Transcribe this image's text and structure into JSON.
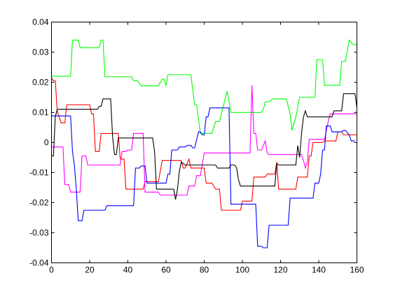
{
  "chart_data": {
    "type": "line",
    "xlim": [
      0,
      160
    ],
    "ylim": [
      -0.04,
      0.04
    ],
    "grid": false,
    "x_ticks": [
      0,
      20,
      40,
      60,
      80,
      100,
      120,
      140,
      160
    ],
    "y_ticks": [
      -0.04,
      -0.03,
      -0.02,
      -0.01,
      0,
      0.01,
      0.02,
      0.03,
      0.04
    ],
    "x_tick_labels": [
      "0",
      "20",
      "40",
      "60",
      "80",
      "100",
      "120",
      "140",
      "160"
    ],
    "y_tick_labels": [
      "-0.04",
      "-0.03",
      "-0.02",
      "-0.01",
      "0",
      "0.01",
      "0.02",
      "0.03",
      "0.04"
    ],
    "series": [
      {
        "color": "#00ff00",
        "points": [
          [
            0,
            0.022
          ],
          [
            10,
            0.022
          ],
          [
            11,
            0.034
          ],
          [
            14,
            0.034
          ],
          [
            15,
            0.0315
          ],
          [
            25,
            0.0315
          ],
          [
            26,
            0.034
          ],
          [
            27,
            0.034
          ],
          [
            28,
            0.0218
          ],
          [
            42,
            0.0218
          ],
          [
            43,
            0.0205
          ],
          [
            45,
            0.0205
          ],
          [
            47,
            0.0188
          ],
          [
            56,
            0.0188
          ],
          [
            58,
            0.021
          ],
          [
            59,
            0.021
          ],
          [
            60,
            0.0188
          ],
          [
            61,
            0.0225
          ],
          [
            73,
            0.0225
          ],
          [
            75,
            0.0125
          ],
          [
            76,
            0.0125
          ],
          [
            78,
            0.003
          ],
          [
            84,
            0.003
          ],
          [
            86,
            0.007
          ],
          [
            88,
            0.007
          ],
          [
            90,
            0.012
          ],
          [
            92,
            0.017
          ],
          [
            93,
            0.0135
          ],
          [
            94,
            0.01
          ],
          [
            110,
            0.01
          ],
          [
            111,
            0.011
          ],
          [
            112,
            0.0135
          ],
          [
            114,
            0.0135
          ],
          [
            116,
            0.0145
          ],
          [
            123,
            0.0145
          ],
          [
            125,
            0.0095
          ],
          [
            126,
            0.004
          ],
          [
            128,
            0.0085
          ],
          [
            130,
            0.015
          ],
          [
            136,
            0.015
          ],
          [
            138,
            0.015
          ],
          [
            139,
            0.0275
          ],
          [
            142,
            0.0275
          ],
          [
            143,
            0.019
          ],
          [
            151,
            0.019
          ],
          [
            152,
            0.027
          ],
          [
            154,
            0.027
          ],
          [
            156,
            0.034
          ],
          [
            158,
            0.0325
          ],
          [
            160,
            0.0325
          ]
        ]
      },
      {
        "color": "#ff0000",
        "points": [
          [
            0,
            0.0215
          ],
          [
            1,
            0.0205
          ],
          [
            2,
            0.0205
          ],
          [
            3,
            0.0105
          ],
          [
            5,
            0.0065
          ],
          [
            7,
            0.0065
          ],
          [
            8,
            0.0125
          ],
          [
            20,
            0.0125
          ],
          [
            21,
            0.0095
          ],
          [
            22,
            0.0095
          ],
          [
            23,
            -0.003
          ],
          [
            25,
            -0.003
          ],
          [
            26,
            0.003
          ],
          [
            35,
            0.003
          ],
          [
            36,
            -0.0055
          ],
          [
            38,
            -0.0055
          ],
          [
            39,
            -0.0155
          ],
          [
            48,
            -0.0155
          ],
          [
            49,
            -0.013
          ],
          [
            56,
            -0.013
          ],
          [
            58,
            -0.006
          ],
          [
            68,
            -0.006
          ],
          [
            69,
            -0.0085
          ],
          [
            70,
            -0.0085
          ],
          [
            72,
            -0.0055
          ],
          [
            73,
            -0.0085
          ],
          [
            80,
            -0.0085
          ],
          [
            81,
            -0.0135
          ],
          [
            84,
            -0.0135
          ],
          [
            86,
            -0.0155
          ],
          [
            88,
            -0.0155
          ],
          [
            89,
            -0.0225
          ],
          [
            99,
            -0.0225
          ],
          [
            100,
            -0.0195
          ],
          [
            105,
            -0.0195
          ],
          [
            106,
            -0.0115
          ],
          [
            112,
            -0.0115
          ],
          [
            113,
            -0.0105
          ],
          [
            117,
            -0.0105
          ],
          [
            118,
            -0.0065
          ],
          [
            119,
            -0.0155
          ],
          [
            128,
            -0.0155
          ],
          [
            129,
            -0.0115
          ],
          [
            134,
            -0.0115
          ],
          [
            135,
            -0.0045
          ],
          [
            136,
            -0.0045
          ],
          [
            137,
            0
          ],
          [
            142,
            0
          ],
          [
            143,
            0.0005
          ],
          [
            149,
            0.0005
          ],
          [
            150,
            0.0035
          ],
          [
            152,
            0.0035
          ],
          [
            153,
            0.0025
          ],
          [
            160,
            0.0025
          ]
        ]
      },
      {
        "color": "#ff00ff",
        "points": [
          [
            0,
            -0.0015
          ],
          [
            6,
            -0.0015
          ],
          [
            7,
            -0.014
          ],
          [
            9,
            -0.014
          ],
          [
            10,
            -0.0165
          ],
          [
            15,
            -0.0165
          ],
          [
            16,
            -0.0045
          ],
          [
            18,
            -0.0045
          ],
          [
            19,
            -0.0075
          ],
          [
            36,
            -0.0075
          ],
          [
            37,
            -0.003
          ],
          [
            39,
            -0.003
          ],
          [
            40,
            -0.0025
          ],
          [
            42,
            -0.0025
          ],
          [
            43,
            0.003
          ],
          [
            48,
            0.003
          ],
          [
            49,
            -0.0165
          ],
          [
            56,
            -0.0165
          ],
          [
            57,
            -0.0175
          ],
          [
            71,
            -0.0175
          ],
          [
            72,
            -0.0145
          ],
          [
            75,
            -0.0145
          ],
          [
            76,
            -0.011
          ],
          [
            78,
            -0.011
          ],
          [
            80,
            -0.0035
          ],
          [
            104,
            -0.0035
          ],
          [
            105,
            0.019
          ],
          [
            106,
            0.003
          ],
          [
            107,
            0.003
          ],
          [
            108,
            -0.0025
          ],
          [
            110,
            -0.0025
          ],
          [
            112,
            0.0005
          ],
          [
            113,
            -0.0035
          ],
          [
            114,
            -0.004
          ],
          [
            131,
            -0.004
          ],
          [
            132,
            -0.006
          ],
          [
            133,
            -0.0085
          ],
          [
            134,
            -0.0065
          ],
          [
            135,
            0.001
          ],
          [
            143,
            0.001
          ],
          [
            145,
            0.007
          ],
          [
            146,
            0.0095
          ],
          [
            160,
            0.0095
          ]
        ]
      },
      {
        "color": "#0000ff",
        "points": [
          [
            0,
            0.0088
          ],
          [
            10,
            0.0088
          ],
          [
            11,
            -0.003
          ],
          [
            12,
            -0.0075
          ],
          [
            13,
            -0.0155
          ],
          [
            14,
            -0.026
          ],
          [
            16,
            -0.026
          ],
          [
            17,
            -0.0225
          ],
          [
            28,
            -0.0225
          ],
          [
            29,
            -0.021
          ],
          [
            43,
            -0.021
          ],
          [
            44,
            -0.0085
          ],
          [
            46,
            -0.0085
          ],
          [
            47,
            -0.0078
          ],
          [
            49,
            -0.0078
          ],
          [
            50,
            -0.0135
          ],
          [
            60,
            -0.0135
          ],
          [
            61,
            -0.0105
          ],
          [
            62,
            -0.0105
          ],
          [
            63,
            -0.0025
          ],
          [
            66,
            -0.0025
          ],
          [
            67,
            -0.0015
          ],
          [
            70,
            -0.0015
          ],
          [
            71,
            -0.001
          ],
          [
            73,
            -0.001
          ],
          [
            74,
            -0.0018
          ],
          [
            75,
            -0.0018
          ],
          [
            77,
            0.0035
          ],
          [
            78,
            0.0035
          ],
          [
            79,
            0.0025
          ],
          [
            80,
            0.0025
          ],
          [
            81,
            0.0085
          ],
          [
            82,
            0.0085
          ],
          [
            83,
            0.0115
          ],
          [
            93,
            0.0115
          ],
          [
            94,
            -0.0205
          ],
          [
            107,
            -0.0205
          ],
          [
            108,
            -0.0345
          ],
          [
            110,
            -0.0345
          ],
          [
            111,
            -0.035
          ],
          [
            113,
            -0.035
          ],
          [
            114,
            -0.0275
          ],
          [
            124,
            -0.0275
          ],
          [
            125,
            -0.0185
          ],
          [
            137,
            -0.0185
          ],
          [
            138,
            -0.0135
          ],
          [
            140,
            -0.0135
          ],
          [
            141,
            -0.0105
          ],
          [
            142,
            -0.0025
          ],
          [
            143,
            -0.0025
          ],
          [
            144,
            0.0055
          ],
          [
            146,
            0.0055
          ],
          [
            147,
            0.0035
          ],
          [
            152,
            0.0035
          ],
          [
            153,
            0.004
          ],
          [
            154,
            0.004
          ],
          [
            156,
            0.0025
          ],
          [
            157,
            0.0005
          ],
          [
            158,
            0.0005
          ],
          [
            159,
            0.0005
          ]
        ]
      },
      {
        "color": "#000000",
        "points": [
          [
            0,
            -0.0045
          ],
          [
            1,
            -0.0045
          ],
          [
            2,
            0.0085
          ],
          [
            3,
            0.011
          ],
          [
            24,
            0.011
          ],
          [
            25,
            0.012
          ],
          [
            26,
            0.012
          ],
          [
            27,
            0.0145
          ],
          [
            31,
            0.0145
          ],
          [
            32,
            0.002
          ],
          [
            33,
            -0.004
          ],
          [
            34,
            -0.004
          ],
          [
            35,
            0.0015
          ],
          [
            53,
            0.0015
          ],
          [
            54,
            -0.003
          ],
          [
            55,
            -0.0155
          ],
          [
            64,
            -0.0155
          ],
          [
            65,
            -0.019
          ],
          [
            66,
            -0.0155
          ],
          [
            67,
            -0.0095
          ],
          [
            68,
            -0.0065
          ],
          [
            70,
            -0.0075
          ],
          [
            86,
            -0.0075
          ],
          [
            87,
            -0.0085
          ],
          [
            93,
            -0.0085
          ],
          [
            94,
            -0.0075
          ],
          [
            96,
            -0.0075
          ],
          [
            97,
            -0.0085
          ],
          [
            98,
            -0.0125
          ],
          [
            99,
            -0.0145
          ],
          [
            117,
            -0.0145
          ],
          [
            118,
            -0.007
          ],
          [
            119,
            -0.0075
          ],
          [
            127,
            -0.0075
          ],
          [
            128,
            -0.0075
          ],
          [
            129,
            -0.001
          ],
          [
            130,
            -0.005
          ],
          [
            131,
            0.003
          ],
          [
            132,
            0.0085
          ],
          [
            133,
            0.0105
          ],
          [
            134,
            0.0085
          ],
          [
            147,
            0.0085
          ],
          [
            148,
            0.0105
          ],
          [
            152,
            0.0105
          ],
          [
            153,
            0.0162
          ],
          [
            159,
            0.0162
          ],
          [
            160,
            0.0115
          ]
        ]
      }
    ]
  }
}
